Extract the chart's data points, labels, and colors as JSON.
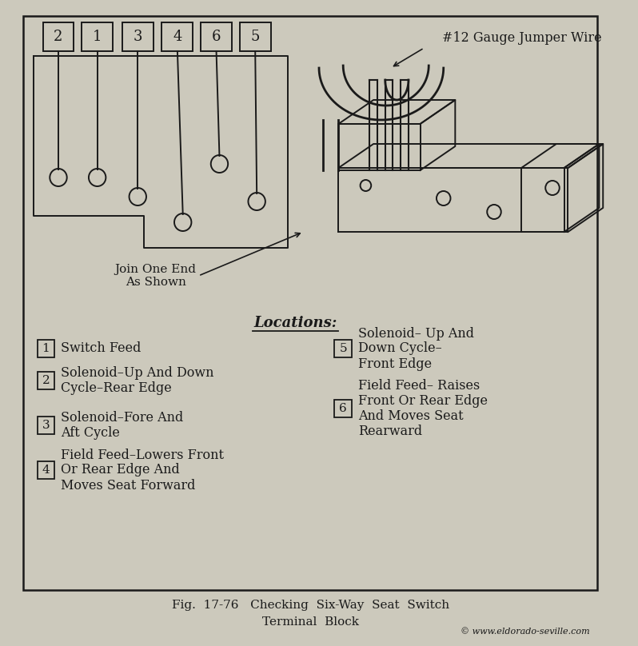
{
  "bg_color": "#ccc9bc",
  "inner_bg": "#d4d0c4",
  "border_color": "#2a2a2a",
  "text_color": "#1a1a1a",
  "title": "#12 Gauge Jumper Wire",
  "locations_label": "Locations:",
  "caption_line1": "Fig.  17-76   Checking  Six-Way  Seat  Switch",
  "caption_line2": "Terminal  Block",
  "copyright": "© www.eldorado-seville.com",
  "terminal_numbers": [
    "2",
    "1",
    "3",
    "4",
    "6",
    "5"
  ],
  "items": [
    {
      "num": "1",
      "text": "Switch Feed"
    },
    {
      "num": "2",
      "text": "Solenoid–Up And Down\nCycle–Rear Edge"
    },
    {
      "num": "3",
      "text": "Solenoid–Fore And\nAft Cycle"
    },
    {
      "num": "4",
      "text": "Field Feed–Lowers Front\nOr Rear Edge And\nMoves Seat Forward"
    },
    {
      "num": "5",
      "text": "Solenoid– Up And\nDown Cycle–\nFront Edge"
    },
    {
      "num": "6",
      "text": "Field Feed– Raises\nFront Or Rear Edge\nAnd Moves Seat\nRearward"
    }
  ],
  "join_text": "Join One End\nAs Shown"
}
